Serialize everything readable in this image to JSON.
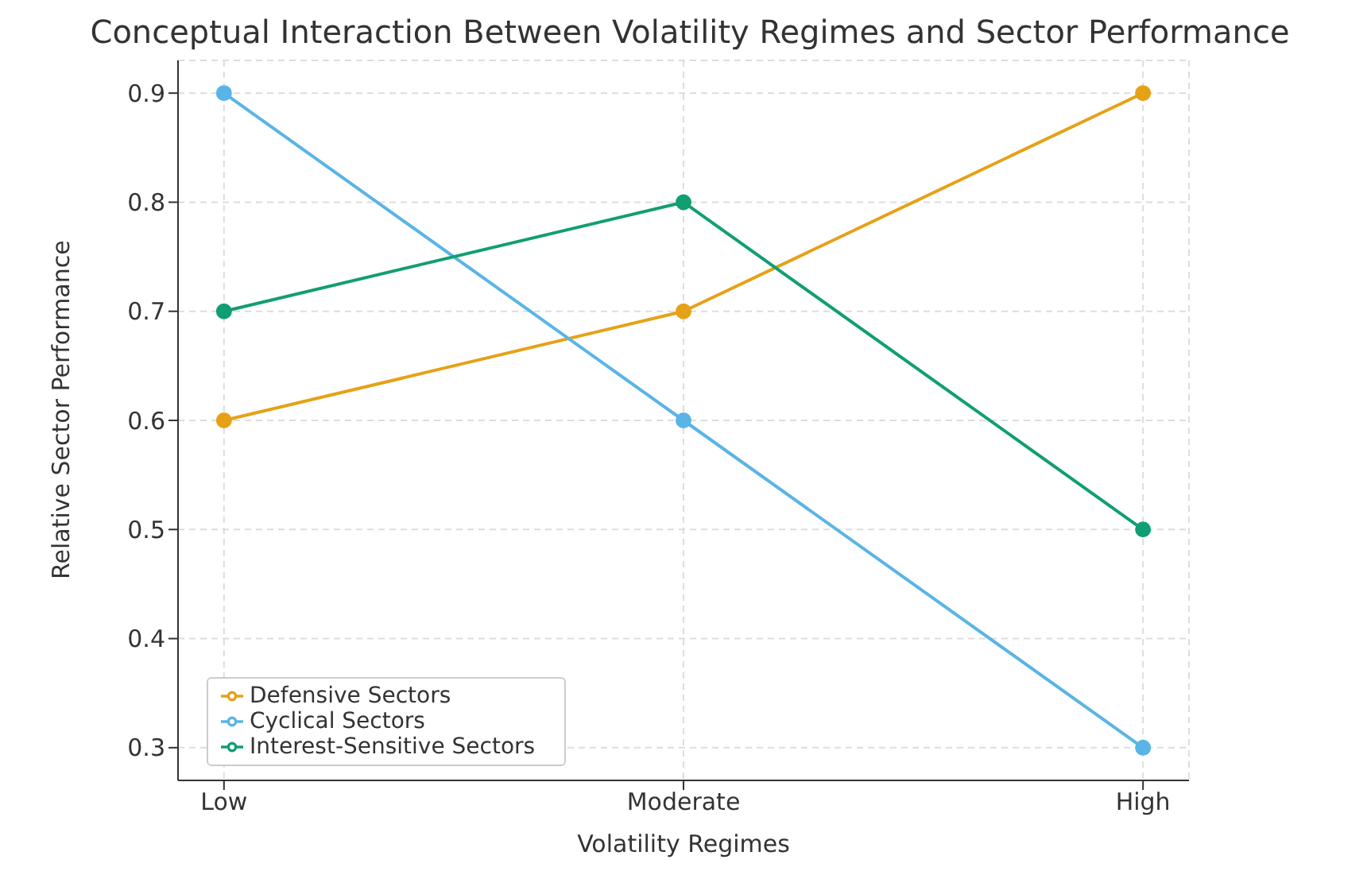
{
  "chart_data": {
    "type": "line",
    "title": "Conceptual Interaction Between Volatility Regimes and Sector Performance",
    "xlabel": "Volatility Regimes",
    "ylabel": "Relative Sector Performance",
    "categories": [
      "Low",
      "Moderate",
      "High"
    ],
    "series": [
      {
        "name": "Defensive Sectors",
        "color": "#e6a117",
        "values": [
          0.6,
          0.7,
          0.9
        ]
      },
      {
        "name": "Cyclical Sectors",
        "color": "#5ab4e6",
        "values": [
          0.9,
          0.6,
          0.3
        ]
      },
      {
        "name": "Interest-Sensitive Sectors",
        "color": "#119e73",
        "values": [
          0.7,
          0.8,
          0.5
        ]
      }
    ],
    "ylim": [
      0.27,
      0.93
    ],
    "yticks": [
      0.3,
      0.4,
      0.5,
      0.6,
      0.7,
      0.8,
      0.9
    ],
    "grid": true,
    "legend": "bottom left",
    "marker": "circle",
    "line_style": "solid"
  }
}
